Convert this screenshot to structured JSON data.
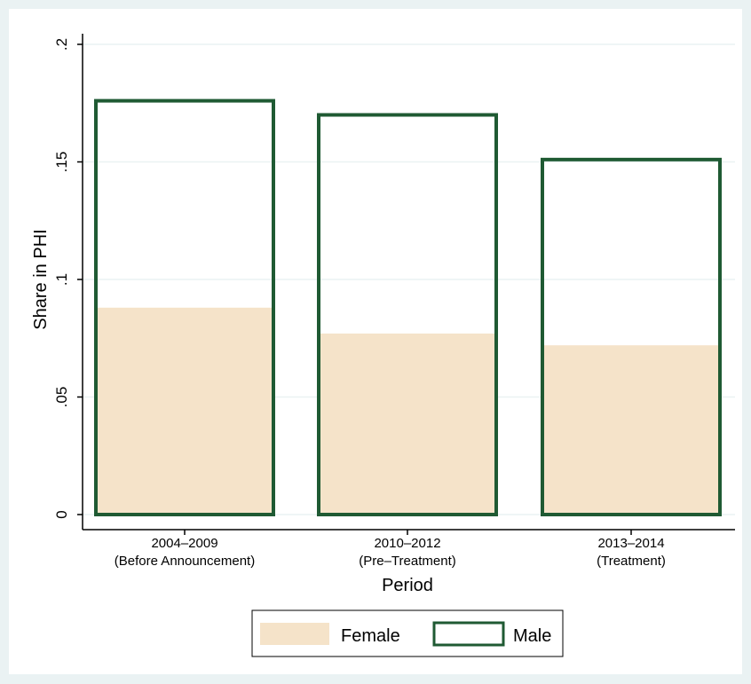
{
  "chart_data": {
    "type": "bar",
    "title": "",
    "xlabel": "Period",
    "ylabel": "Share in PHI",
    "categories": [
      [
        "2004–2009",
        "(Before Announcement)"
      ],
      [
        "2010–2012",
        "(Pre–Treatment)"
      ],
      [
        "2013–2014",
        "(Treatment)"
      ]
    ],
    "series": [
      {
        "name": "Female",
        "values": [
          0.088,
          0.077,
          0.072
        ],
        "style": "filled",
        "color": "#f5e3c9"
      },
      {
        "name": "Male",
        "values": [
          0.176,
          0.17,
          0.151
        ],
        "style": "outline",
        "color": "#1f5a33"
      }
    ],
    "ylim": [
      0,
      0.2
    ],
    "yticks": [
      0,
      0.05,
      0.1,
      0.15,
      0.2
    ],
    "ytick_labels": [
      "0",
      ".05",
      ".1",
      ".15",
      ".2"
    ],
    "grid": true,
    "legend_position": "bottom",
    "colors": {
      "outer_background": "#eaf2f3",
      "plot_background": "#ffffff",
      "grid": "#eaf2f3",
      "axis": "#000000"
    }
  }
}
